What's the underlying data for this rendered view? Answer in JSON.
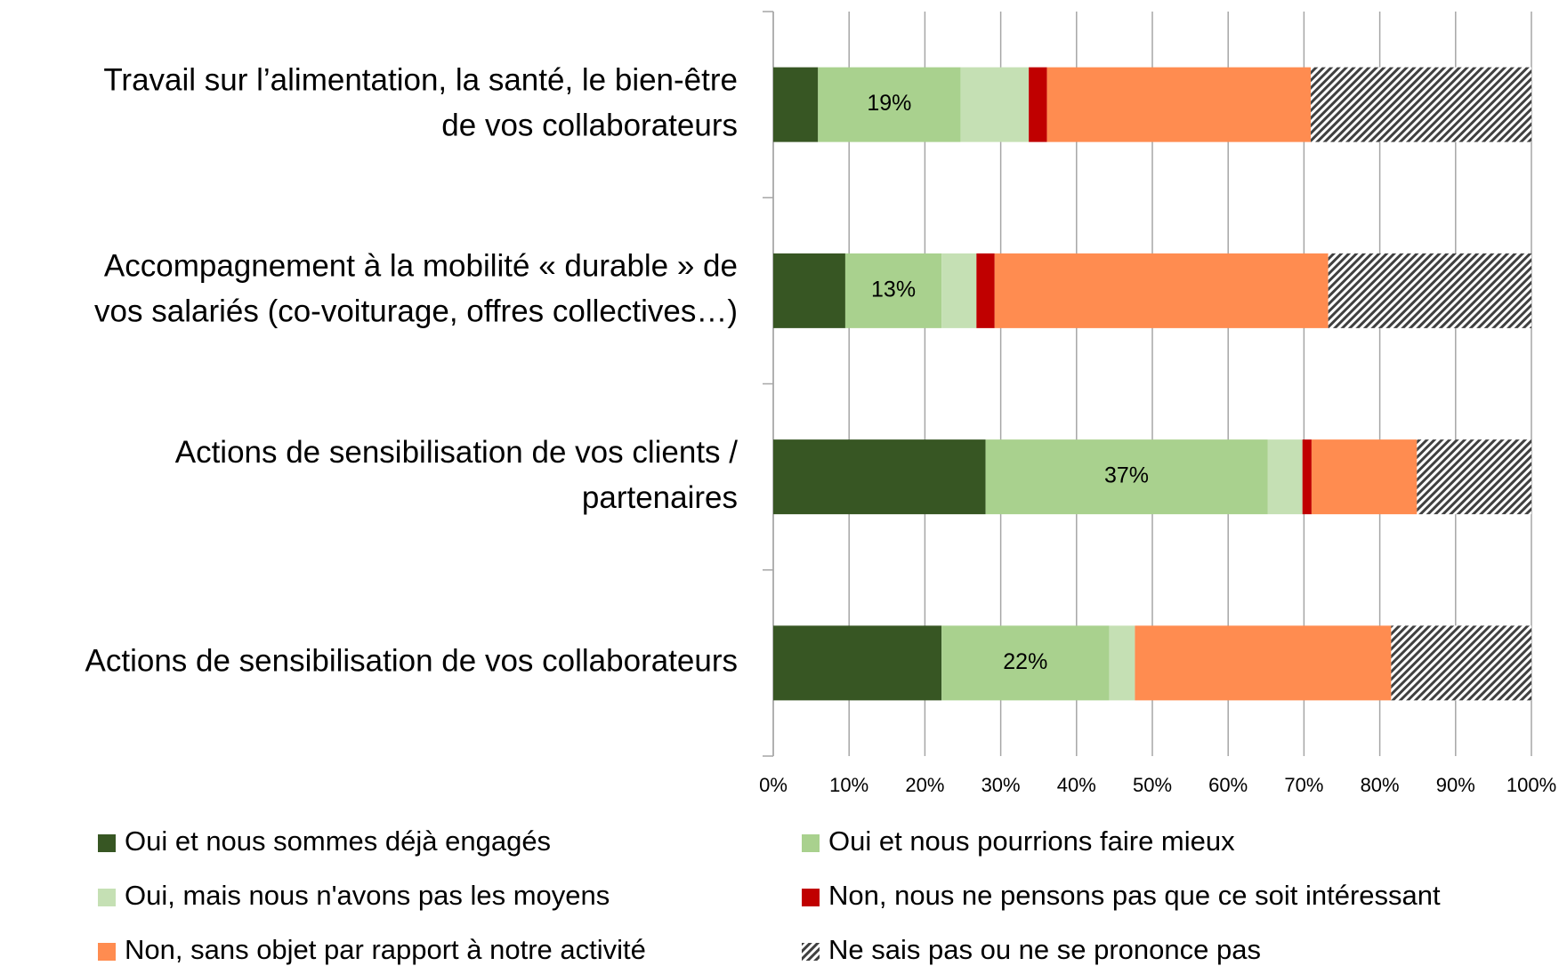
{
  "chart_data": {
    "type": "stacked-barh",
    "categories": [
      [
        "Travail sur l’alimentation, la santé, le bien-être",
        "de vos collaborateurs"
      ],
      [
        "Accompagnement à la mobilité « durable » de",
        "vos salariés (co-voiturage, offres collectives…)"
      ],
      [
        "Actions de sensibilisation de vos clients /",
        "partenaires"
      ],
      [
        "Actions de sensibilisation de vos collaborateurs"
      ]
    ],
    "series": [
      {
        "name": "Oui et nous sommes déjà engagés",
        "color": "#375623",
        "values": [
          5.9,
          9.5,
          28.0,
          22.2
        ]
      },
      {
        "name": "Oui et nous pourrions faire mieux",
        "color": "#a9d18e",
        "values": [
          18.8,
          12.7,
          37.2,
          22.1
        ],
        "value_labels": [
          "19%",
          "13%",
          "37%",
          "22%"
        ]
      },
      {
        "name": "Oui, mais nous n'avons pas les moyens",
        "color": "#c5e0b4",
        "values": [
          9.0,
          4.6,
          4.6,
          3.4
        ]
      },
      {
        "name": "Non, nous ne pensons pas que ce soit intéressant",
        "color": "#c00000",
        "values": [
          2.4,
          2.4,
          1.2,
          0
        ]
      },
      {
        "name": "Non, sans objet par rapport à notre activité",
        "color": "#ff8c50",
        "values": [
          34.8,
          44.0,
          13.9,
          33.8
        ]
      },
      {
        "name": "Ne sais pas ou ne se prononce pas",
        "color": "#404040",
        "hatch": true,
        "values": [
          29.1,
          26.8,
          15.1,
          18.5
        ]
      }
    ],
    "xlim": [
      0,
      100
    ],
    "xticks": [
      {
        "value": 0,
        "label": "0%"
      },
      {
        "value": 10,
        "label": "10%"
      },
      {
        "value": 20,
        "label": "20%"
      },
      {
        "value": 30,
        "label": "30%"
      },
      {
        "value": 40,
        "label": "40%"
      },
      {
        "value": 50,
        "label": "50%"
      },
      {
        "value": 60,
        "label": "60%"
      },
      {
        "value": 70,
        "label": "70%"
      },
      {
        "value": 80,
        "label": "80%"
      },
      {
        "value": 90,
        "label": "90%"
      },
      {
        "value": 100,
        "label": "100%"
      }
    ],
    "grid": true,
    "legend": "bottom"
  }
}
